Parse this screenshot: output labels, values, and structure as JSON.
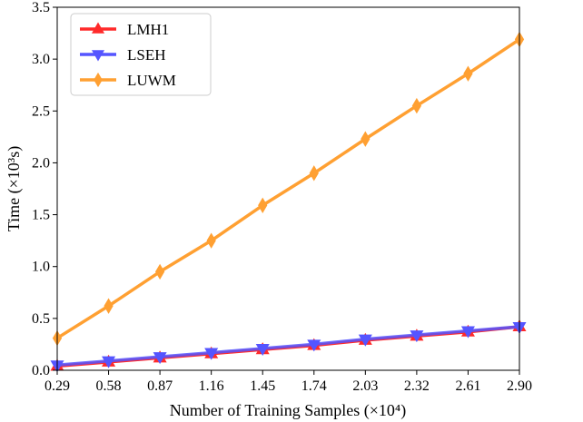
{
  "chart_data": {
    "type": "line",
    "title": "",
    "xlabel": "Number of Training Samples (×10⁴)",
    "ylabel": "Time (×10³s)",
    "x": [
      0.29,
      0.58,
      0.87,
      1.16,
      1.45,
      1.74,
      2.03,
      2.32,
      2.61,
      2.9
    ],
    "x_tick_labels": [
      "0.29",
      "0.58",
      "0.87",
      "1.16",
      "1.45",
      "1.74",
      "2.03",
      "2.32",
      "2.61",
      "2.90"
    ],
    "xlim": [
      0.29,
      2.9
    ],
    "ylim": [
      0.0,
      3.5
    ],
    "y_ticks": [
      0.0,
      0.5,
      1.0,
      1.5,
      2.0,
      2.5,
      3.0,
      3.5
    ],
    "y_tick_labels": [
      "0.0",
      "0.5",
      "1.0",
      "1.5",
      "2.0",
      "2.5",
      "3.0",
      "3.5"
    ],
    "grid": false,
    "legend_position": "top-left",
    "series": [
      {
        "name": "LMH1",
        "color": "#ff2a2a",
        "marker": "triangle-up",
        "values": [
          0.04,
          0.08,
          0.12,
          0.16,
          0.2,
          0.24,
          0.29,
          0.33,
          0.37,
          0.42
        ]
      },
      {
        "name": "LSEH",
        "color": "#5555ff",
        "marker": "triangle-down",
        "values": [
          0.05,
          0.09,
          0.13,
          0.17,
          0.21,
          0.25,
          0.3,
          0.34,
          0.38,
          0.42
        ]
      },
      {
        "name": "LUWM",
        "color": "#ffa032",
        "marker": "diamond",
        "values": [
          0.31,
          0.62,
          0.95,
          1.25,
          1.59,
          1.9,
          2.23,
          2.55,
          2.86,
          3.19
        ]
      }
    ]
  }
}
